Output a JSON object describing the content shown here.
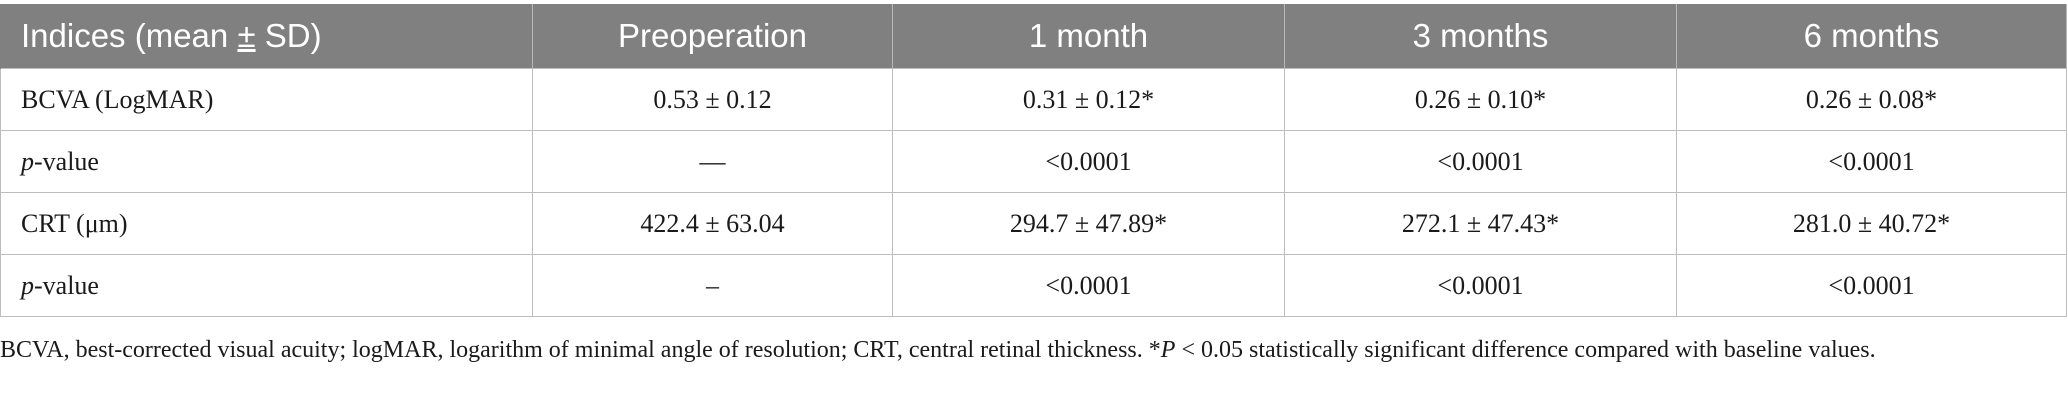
{
  "table": {
    "headers": {
      "col0_prefix": "Indices (mean ",
      "col0_pm": "±",
      "col0_suffix": " SD)",
      "col1": "Preoperation",
      "col2": "1 month",
      "col3": "3 months",
      "col4": "6 months"
    },
    "rows": [
      {
        "label": "BCVA (LogMAR)",
        "preop": "0.53 ± 0.12",
        "m1": "0.31 ± 0.12*",
        "m3": "0.26 ± 0.10*",
        "m6": "0.26 ± 0.08*"
      },
      {
        "label_italic": "p",
        "label_rest": "-value",
        "preop": "—",
        "m1": "<0.0001",
        "m3": "<0.0001",
        "m6": "<0.0001"
      },
      {
        "label": "CRT (μm)",
        "preop": "422.4 ± 63.04",
        "m1": "294.7 ± 47.89*",
        "m3": "272.1 ± 47.43*",
        "m6": "281.0 ± 40.72*"
      },
      {
        "label_italic": "p",
        "label_rest": "-value",
        "preop": "–",
        "m1": "<0.0001",
        "m3": "<0.0001",
        "m6": "<0.0001"
      }
    ]
  },
  "footnote": {
    "before_italic": "BCVA, best-corrected visual acuity; logMAR, logarithm of minimal angle of resolution; CRT, central retinal thickness. *",
    "italic": "P",
    "after_italic": " < 0.05 statistically significant difference compared with baseline values."
  }
}
